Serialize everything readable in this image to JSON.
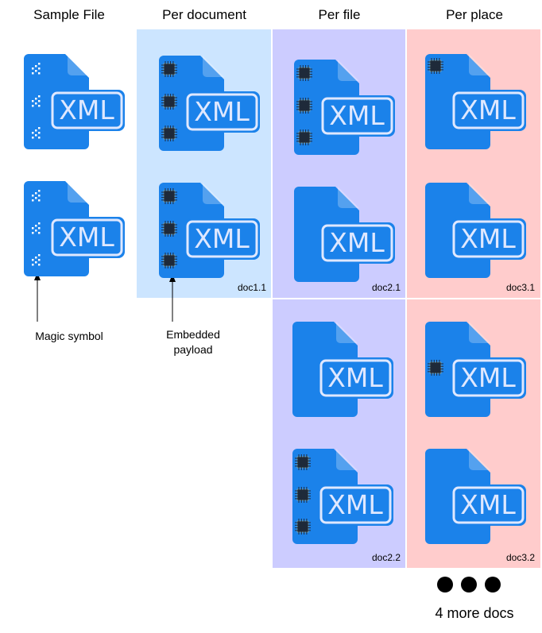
{
  "columns": [
    "Sample File",
    "Per document",
    "Per file",
    "Per place"
  ],
  "icon_label": "XML",
  "docs": [
    "doc1.1",
    "doc2.1",
    "doc3.1",
    "doc2.2",
    "doc3.2"
  ],
  "annotations": [
    "Magic symbol",
    "Embedded payload"
  ],
  "more": "4 more docs"
}
